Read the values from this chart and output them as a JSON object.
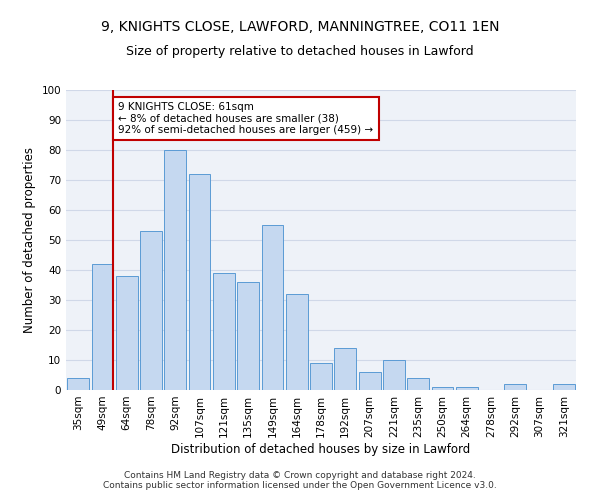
{
  "title1": "9, KNIGHTS CLOSE, LAWFORD, MANNINGTREE, CO11 1EN",
  "title2": "Size of property relative to detached houses in Lawford",
  "xlabel": "Distribution of detached houses by size in Lawford",
  "ylabel": "Number of detached properties",
  "categories": [
    "35sqm",
    "49sqm",
    "64sqm",
    "78sqm",
    "92sqm",
    "107sqm",
    "121sqm",
    "135sqm",
    "149sqm",
    "164sqm",
    "178sqm",
    "192sqm",
    "207sqm",
    "221sqm",
    "235sqm",
    "250sqm",
    "264sqm",
    "278sqm",
    "292sqm",
    "307sqm",
    "321sqm"
  ],
  "values": [
    4,
    42,
    38,
    53,
    80,
    72,
    39,
    36,
    55,
    32,
    9,
    14,
    6,
    10,
    4,
    1,
    1,
    0,
    2,
    0,
    2
  ],
  "bar_color": "#c5d8f0",
  "bar_edge_color": "#5b9bd5",
  "vline_color": "#c00000",
  "vline_x": 1.45,
  "annotation_text": "9 KNIGHTS CLOSE: 61sqm\n← 8% of detached houses are smaller (38)\n92% of semi-detached houses are larger (459) →",
  "annotation_box_color": "#ffffff",
  "annotation_box_edge": "#c00000",
  "ylim": [
    0,
    100
  ],
  "yticks": [
    0,
    10,
    20,
    30,
    40,
    50,
    60,
    70,
    80,
    90,
    100
  ],
  "grid_color": "#d0d8e8",
  "bg_color": "#eef2f8",
  "footer": "Contains HM Land Registry data © Crown copyright and database right 2024.\nContains public sector information licensed under the Open Government Licence v3.0.",
  "title1_fontsize": 10,
  "title2_fontsize": 9,
  "xlabel_fontsize": 8.5,
  "ylabel_fontsize": 8.5,
  "tick_fontsize": 7.5,
  "footer_fontsize": 6.5,
  "annot_fontsize": 7.5
}
